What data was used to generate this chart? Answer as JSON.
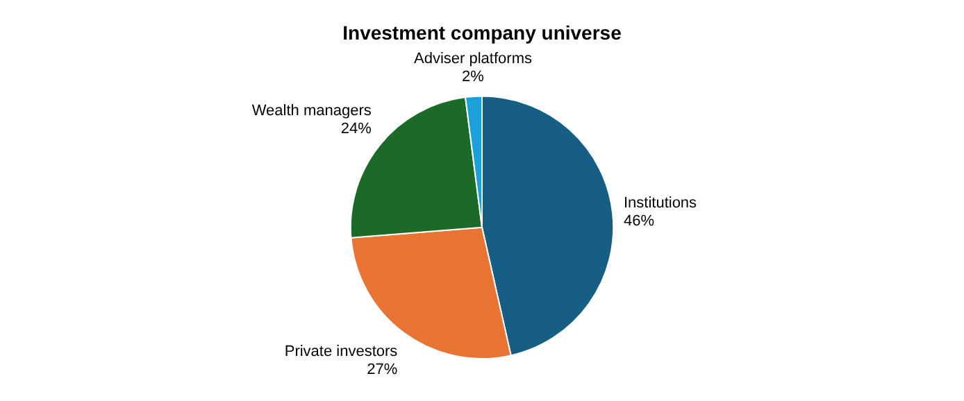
{
  "chart_data": {
    "type": "pie",
    "title": "Investment company universe",
    "categories": [
      "Institutions",
      "Private investors",
      "Wealth managers",
      "Adviser platforms"
    ],
    "values": [
      46,
      27,
      24,
      2
    ],
    "colors": [
      "#175e84",
      "#e97333",
      "#1b6a27",
      "#1ba1d9"
    ],
    "value_labels": [
      "46%",
      "27%",
      "24%",
      "2%"
    ],
    "legend": false
  }
}
